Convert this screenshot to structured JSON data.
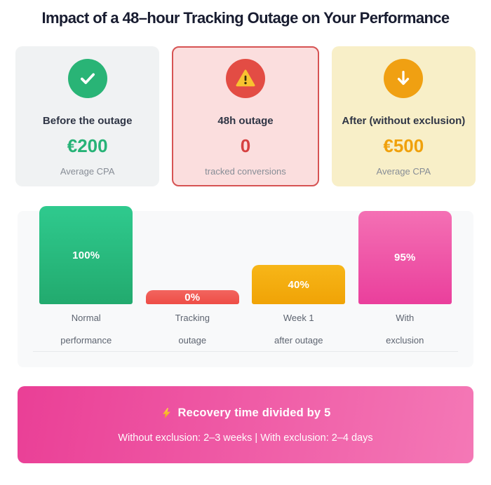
{
  "header": {
    "title": "Impact of a 48–hour Tracking Outage on Your Performance"
  },
  "cards": [
    {
      "id": "before",
      "icon": "check-icon",
      "title": "Before the outage",
      "value": "€200",
      "caption": "Average CPA",
      "bg": "#f0f2f3",
      "icon_bg": "#29b476",
      "value_color": "#27b377"
    },
    {
      "id": "outage",
      "icon": "warning-icon",
      "title": "48h outage",
      "value": "0",
      "caption": "tracked conversions",
      "bg": "#fbdede",
      "border": "#d65353",
      "icon_bg": "#e34c44",
      "value_color": "#d64141"
    },
    {
      "id": "after",
      "icon": "arrow-down-icon",
      "title": "After (without exclusion)",
      "value": "€500",
      "caption": "Average CPA",
      "bg": "#f8efc8",
      "icon_bg": "#f0a012",
      "value_color": "#f0a10c"
    }
  ],
  "chart_data": {
    "type": "bar",
    "title": "",
    "xlabel": "",
    "ylabel": "",
    "categories": [
      "Normal\nperformance",
      "Tracking\noutage",
      "Week 1\nafter outage",
      "With\nexclusion"
    ],
    "values": [
      100,
      0,
      40,
      95
    ],
    "value_labels": [
      "100%",
      "0%",
      "40%",
      "95%"
    ],
    "bar_colors": [
      [
        "#2fca8e",
        "#22aa6e"
      ],
      [
        "#f2655f",
        "#ee4d46"
      ],
      [
        "#f7b618",
        "#f0a306"
      ],
      [
        "#f470b4",
        "#ea3f9c"
      ]
    ],
    "ylim": [
      0,
      100
    ],
    "grid": false,
    "legend": false
  },
  "banner": {
    "icon": "lightning-icon",
    "title": "Recovery time divided by 5",
    "subtitle": "Without exclusion: 2–3 weeks | With exclusion: 2–4 days",
    "gradient": [
      "#ea3f96",
      "#f478b6"
    ]
  }
}
